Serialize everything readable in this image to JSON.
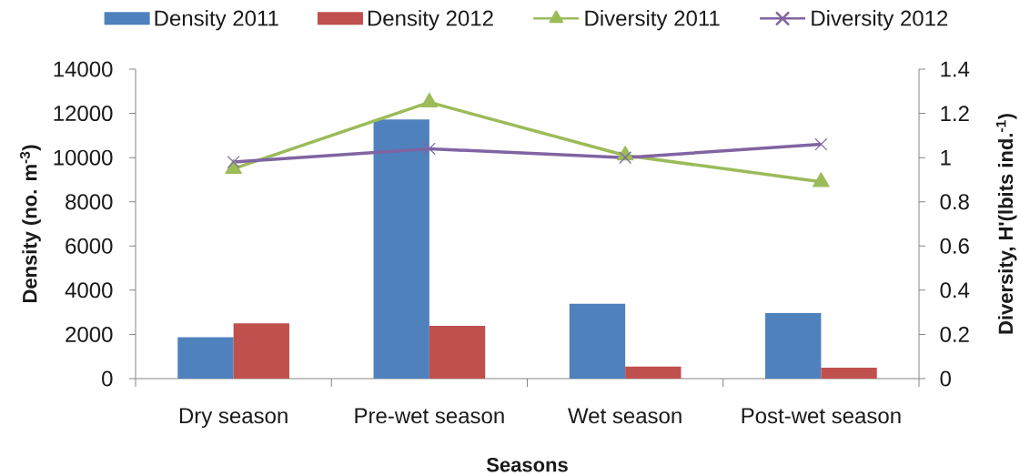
{
  "chart_data": {
    "type": "bar",
    "xlabel": "Seasons",
    "ylabel": "Density (no. m$^{-3}$)",
    "y2label": "Diversity, H'(lbits ind.$^{-1}$)",
    "categories": [
      "Dry season",
      "Pre-wet season",
      "Wet season",
      "Post-wet season"
    ],
    "series": [
      {
        "name": "Density 2011",
        "color": "#4f81bd",
        "values": [
          1870,
          11720,
          3390,
          2960
        ]
      },
      {
        "name": "Density 2012",
        "color": "#c0504d",
        "values": [
          2500,
          2390,
          550,
          490
        ]
      },
      {
        "name": "Diversity 2011",
        "type": "line",
        "axis": "y2",
        "color": "#9bbb59",
        "marker": "triangle",
        "values": [
          0.95,
          1.25,
          1.01,
          0.89
        ]
      },
      {
        "name": "Diversity 2012",
        "type": "line",
        "axis": "y2",
        "color": "#8064a2",
        "marker": "cross",
        "values": [
          0.98,
          1.04,
          1.0,
          1.06
        ]
      }
    ],
    "ylim": [
      0,
      14000
    ],
    "yticks": [
      0,
      2000,
      4000,
      6000,
      8000,
      10000,
      12000,
      14000
    ],
    "y2lim": [
      0,
      1.4
    ],
    "y2ticks": [
      0,
      0.2,
      0.4,
      0.6,
      0.8,
      1,
      1.2,
      1.4
    ],
    "legend": "top",
    "line_style": "solid"
  }
}
